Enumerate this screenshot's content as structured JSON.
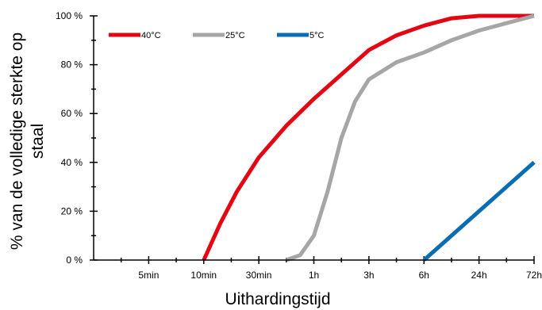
{
  "chart_data": {
    "type": "line",
    "xlabel": "Uithardingstijd",
    "ylabel_lines": [
      "% van de volledige sterkte op",
      "staal"
    ],
    "x_ticks": [
      "5min",
      "10min",
      "30min",
      "1h",
      "3h",
      "6h",
      "24h",
      "72h"
    ],
    "y_ticks": [
      "0 %",
      "20 %",
      "40 %",
      "60 %",
      "80 %",
      "100 %"
    ],
    "ylim": [
      0,
      100
    ],
    "x_scale": "ordinal positions 1–8 with minor ticks",
    "grid": false,
    "legend_position": "top-left",
    "series": [
      {
        "name": "40°C",
        "color": "#e30613",
        "points": [
          [
            2.0,
            0
          ],
          [
            2.3,
            15
          ],
          [
            2.6,
            28
          ],
          [
            3.0,
            42
          ],
          [
            3.5,
            55
          ],
          [
            4.0,
            66
          ],
          [
            4.5,
            76
          ],
          [
            5.0,
            86
          ],
          [
            5.5,
            92
          ],
          [
            6.0,
            96
          ],
          [
            6.5,
            99
          ],
          [
            7.0,
            100
          ],
          [
            8.0,
            100
          ]
        ]
      },
      {
        "name": "25°C",
        "color": "#a6a6a6",
        "points": [
          [
            3.5,
            0
          ],
          [
            3.75,
            2
          ],
          [
            4.0,
            10
          ],
          [
            4.25,
            28
          ],
          [
            4.5,
            50
          ],
          [
            4.75,
            65
          ],
          [
            5.0,
            74
          ],
          [
            5.5,
            81
          ],
          [
            6.0,
            85
          ],
          [
            6.5,
            90
          ],
          [
            7.0,
            94
          ],
          [
            7.5,
            97
          ],
          [
            8.0,
            100
          ]
        ]
      },
      {
        "name": "5°C",
        "color": "#0a6db3",
        "points": [
          [
            6.0,
            0
          ],
          [
            8.0,
            40
          ]
        ]
      }
    ]
  }
}
